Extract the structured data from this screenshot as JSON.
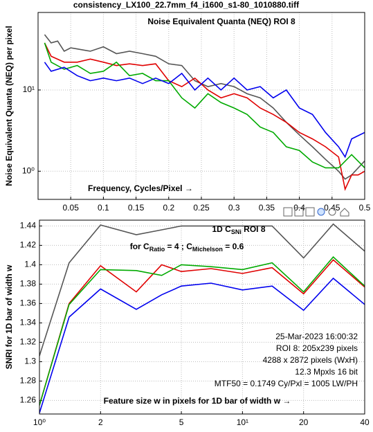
{
  "chart_data": [
    {
      "type": "line",
      "file_name": "consistency_LX100_22.7mm_f4_i1600_s1-80_1010880.tiff",
      "title": "Noise Equivalent Quanta (NEQ)  ROI 8",
      "xlabel": "Frequency, Cycles/Pixel →",
      "ylabel": "Noise Equivalent Quanta (NEQ) per pixel",
      "log_y": true,
      "grid": true,
      "xlim": [
        0,
        0.5
      ],
      "ylim": [
        0.45,
        90
      ],
      "xticks": [
        0.05,
        0.1,
        0.15,
        0.2,
        0.25,
        0.3,
        0.35,
        0.4,
        0.45,
        0.5
      ],
      "yticks": [
        {
          "value": 1,
          "label": "10⁰"
        },
        {
          "value": 10,
          "label": "10¹"
        }
      ],
      "series": [
        {
          "color": "#555555",
          "x": [
            0.01,
            0.02,
            0.03,
            0.04,
            0.05,
            0.06,
            0.08,
            0.1,
            0.12,
            0.14,
            0.16,
            0.18,
            0.2,
            0.22,
            0.24,
            0.26,
            0.28,
            0.3,
            0.32,
            0.34,
            0.36,
            0.38,
            0.4,
            0.42,
            0.44,
            0.46,
            0.47,
            0.48,
            0.5
          ],
          "values": [
            48,
            38,
            40,
            30,
            33,
            32,
            30,
            34,
            28,
            30,
            28,
            26,
            21,
            20,
            13,
            11,
            12,
            11,
            9,
            8,
            6,
            4,
            2.8,
            2,
            1.4,
            1.0,
            0.8,
            0.9,
            1.34
          ]
        },
        {
          "color": "#e00000",
          "x": [
            0.01,
            0.02,
            0.04,
            0.06,
            0.08,
            0.1,
            0.12,
            0.14,
            0.16,
            0.18,
            0.2,
            0.22,
            0.24,
            0.26,
            0.28,
            0.3,
            0.32,
            0.34,
            0.36,
            0.38,
            0.4,
            0.42,
            0.44,
            0.46,
            0.47,
            0.48,
            0.49,
            0.5
          ],
          "values": [
            38,
            26,
            22,
            22,
            24,
            22,
            20,
            21,
            20,
            21,
            13,
            11,
            14,
            10,
            8,
            9,
            8,
            6,
            5,
            4,
            3,
            2.5,
            2,
            1.5,
            0.6,
            0.9,
            0.9,
            1.0
          ]
        },
        {
          "color": "#00aa00",
          "x": [
            0.01,
            0.02,
            0.04,
            0.06,
            0.08,
            0.1,
            0.12,
            0.14,
            0.16,
            0.18,
            0.2,
            0.22,
            0.24,
            0.26,
            0.28,
            0.3,
            0.32,
            0.34,
            0.36,
            0.38,
            0.4,
            0.42,
            0.44,
            0.46,
            0.48,
            0.5
          ],
          "values": [
            38,
            22,
            18,
            20,
            16,
            17,
            22,
            15,
            16,
            13,
            13,
            8,
            6,
            9,
            7,
            6,
            5,
            3.5,
            3,
            2,
            1.8,
            1.3,
            1.1,
            1.1,
            1.6,
            1.1
          ]
        },
        {
          "color": "#0000ee",
          "x": [
            0.01,
            0.02,
            0.04,
            0.06,
            0.08,
            0.1,
            0.12,
            0.14,
            0.16,
            0.18,
            0.2,
            0.22,
            0.24,
            0.26,
            0.28,
            0.3,
            0.32,
            0.34,
            0.36,
            0.38,
            0.4,
            0.42,
            0.44,
            0.46,
            0.47,
            0.48,
            0.5
          ],
          "values": [
            22,
            17,
            19,
            15,
            13,
            14,
            13,
            14,
            12,
            14,
            12,
            16,
            10,
            14,
            10,
            14,
            10,
            11,
            8,
            10,
            6,
            5,
            3,
            2,
            1.5,
            2.5,
            3
          ]
        }
      ]
    },
    {
      "type": "line",
      "title_parts": [
        "1D C",
        "SNi",
        "  ROI 8"
      ],
      "annotation_parts": [
        "for C",
        "Ratio",
        " = 4 ;  C",
        "Michelson",
        " = 0.6"
      ],
      "info_lines": [
        "25-Mar-2023 16:00:32",
        "ROI 8:  205x239 pixels",
        "4288 x 2872 pixels (WxH)",
        "12.3 Mpxls   16 bit",
        "MTF50 = 0.1749 Cy/Pxl = 1005 LW/PH"
      ],
      "xlabel": "Feature size w in pixels for 1D bar of width w  →",
      "ylabel": "SNRI for 1D bar of width w",
      "log_x": true,
      "grid": true,
      "xlim": [
        1,
        40
      ],
      "ylim": [
        1.246,
        1.446
      ],
      "xticks": [
        {
          "value": 1,
          "label": "10⁰"
        },
        2,
        5,
        {
          "value": 10,
          "label": "10¹"
        },
        20,
        40
      ],
      "yticks": [
        1.26,
        1.28,
        1.3,
        1.32,
        1.34,
        1.36,
        1.38,
        1.4,
        1.42,
        1.44
      ],
      "series": [
        {
          "color": "#555555",
          "x": [
            1,
            1.4,
            2,
            3,
            4,
            5,
            7,
            10,
            14,
            20,
            28,
            40
          ],
          "values": [
            1.306,
            1.402,
            1.441,
            1.431,
            1.436,
            1.44,
            1.44,
            1.44,
            1.44,
            1.407,
            1.442,
            1.414
          ]
        },
        {
          "color": "#e00000",
          "x": [
            1,
            1.4,
            2,
            3,
            4,
            5,
            7,
            10,
            14,
            20,
            28,
            40
          ],
          "values": [
            1.255,
            1.36,
            1.399,
            1.372,
            1.4,
            1.393,
            1.396,
            1.391,
            1.397,
            1.37,
            1.405,
            1.377
          ]
        },
        {
          "color": "#00aa00",
          "x": [
            1,
            1.4,
            2,
            3,
            4,
            5,
            7,
            10,
            14,
            20,
            28,
            40
          ],
          "values": [
            1.255,
            1.359,
            1.395,
            1.394,
            1.389,
            1.4,
            1.398,
            1.395,
            1.402,
            1.372,
            1.408,
            1.378
          ]
        },
        {
          "color": "#0000ee",
          "x": [
            1,
            1.4,
            2,
            3,
            4,
            5,
            7,
            10,
            14,
            20,
            28,
            40
          ],
          "values": [
            1.247,
            1.346,
            1.375,
            1.354,
            1.369,
            1.378,
            1.381,
            1.374,
            1.378,
            1.353,
            1.386,
            1.359
          ]
        }
      ]
    }
  ]
}
